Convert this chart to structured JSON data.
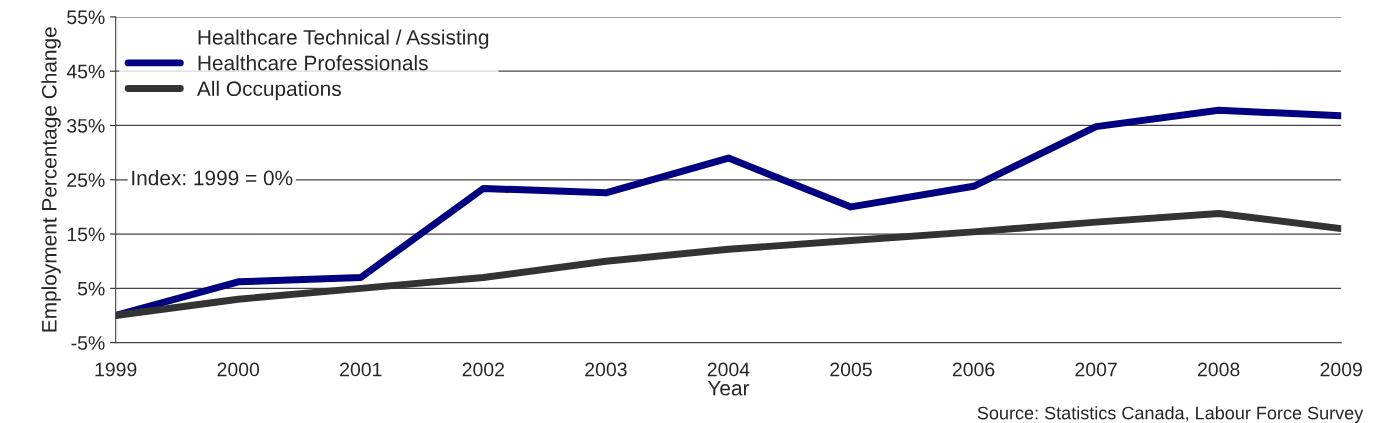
{
  "chart_data": {
    "type": "line",
    "xlabel": "Year",
    "ylabel": "Employment Percentage Change",
    "categories": [
      "1999",
      "2000",
      "2001",
      "2002",
      "2003",
      "2004",
      "2005",
      "2006",
      "2007",
      "2008",
      "2009"
    ],
    "series": [
      {
        "name": "Healthcare Technical / Assisting",
        "values": [
          null,
          null,
          null,
          null,
          null,
          null,
          null,
          null,
          null,
          null,
          null
        ]
      },
      {
        "name": "Healthcare Professionals",
        "color": "#000080",
        "values": [
          0,
          6.2,
          7.0,
          23.4,
          22.6,
          29.0,
          20.0,
          23.8,
          34.8,
          37.8,
          36.8
        ]
      },
      {
        "name": "All Occupations",
        "color": "#333333",
        "values": [
          0,
          3.0,
          5.0,
          7.0,
          10.0,
          12.2,
          13.8,
          15.4,
          17.2,
          18.8,
          16.0
        ]
      }
    ],
    "ylim": [
      -5,
      55
    ],
    "yticks": [
      {
        "value": -5,
        "label": "-5%"
      },
      {
        "value": 5,
        "label": "5%"
      },
      {
        "value": 15,
        "label": "15%"
      },
      {
        "value": 25,
        "label": "25%"
      },
      {
        "value": 35,
        "label": "35%"
      },
      {
        "value": 45,
        "label": "45%"
      },
      {
        "value": 55,
        "label": "55%"
      }
    ],
    "grid": "y",
    "legend": "top left",
    "marker": "none",
    "line_style": "solid",
    "annotations": [
      "Index: 1999 = 0%",
      "Source: Statistics Canada, Labour Force Survey"
    ]
  }
}
